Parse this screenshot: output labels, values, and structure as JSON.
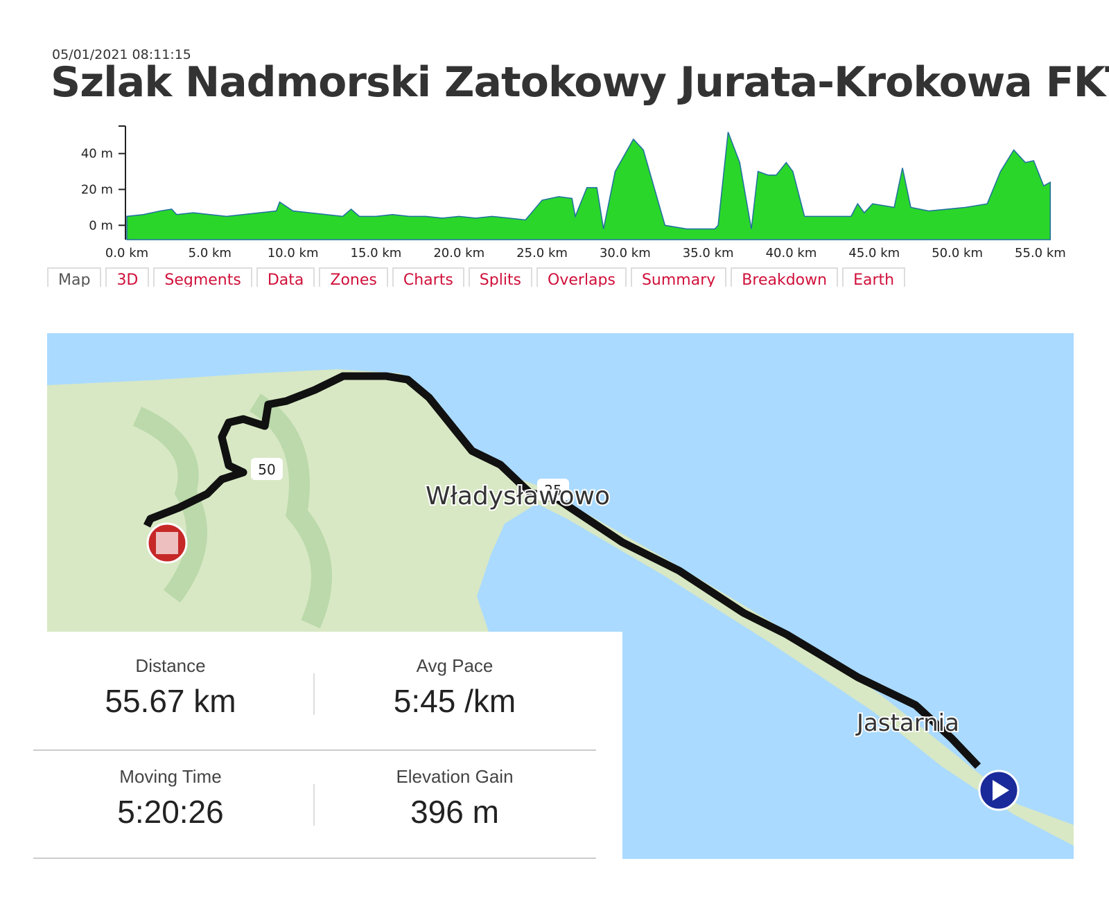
{
  "header": {
    "timestamp": "05/01/2021 08:11:15",
    "title": "Szlak Nadmorski Zatokowy Jurata-Krokowa FKT"
  },
  "chart_data": {
    "type": "area",
    "color": "#2bd62b",
    "line_color": "#1f6fa0",
    "x": [
      0,
      1,
      2,
      2.7,
      3,
      4,
      5,
      6,
      7,
      8,
      9,
      9.2,
      10,
      11,
      12,
      13,
      13.5,
      14,
      15,
      16,
      17,
      18,
      19,
      20,
      21,
      22,
      23,
      24,
      25,
      26,
      26.8,
      27,
      27.7,
      28.3,
      28.7,
      29.4,
      30.5,
      31.1,
      32.4,
      33.7,
      35.4,
      35.6,
      36.2,
      36.9,
      37.6,
      38,
      38.6,
      39.1,
      39.7,
      40.1,
      40.8,
      43.6,
      44,
      44.4,
      44.9,
      46.2,
      46.7,
      47.2,
      48.3,
      50.5,
      51.8,
      52.6,
      53.4,
      54.1,
      54.6,
      55.2,
      55.6
    ],
    "values": [
      5,
      6,
      8,
      9,
      6,
      7,
      6,
      5,
      6,
      7,
      8,
      13,
      8,
      7,
      6,
      5,
      9,
      5,
      5,
      6,
      5,
      5,
      4,
      5,
      4,
      5,
      4,
      3,
      14,
      16,
      15,
      5,
      21,
      21,
      -2,
      30,
      48,
      42,
      0,
      -2,
      -2,
      0,
      52,
      35,
      -2,
      30,
      28,
      28,
      35,
      30,
      5,
      5,
      12,
      7,
      12,
      10,
      32,
      10,
      8,
      10,
      12,
      30,
      42,
      35,
      36,
      22,
      24
    ],
    "xlim": [
      0,
      55.67
    ],
    "ylim": [
      -8,
      53
    ],
    "xticks": [
      {
        "value": 0,
        "label": "0.0 km"
      },
      {
        "value": 5,
        "label": "5.0 km"
      },
      {
        "value": 10,
        "label": "10.0 km"
      },
      {
        "value": 15,
        "label": "15.0 km"
      },
      {
        "value": 20,
        "label": "20.0 km"
      },
      {
        "value": 25,
        "label": "25.0 km"
      },
      {
        "value": 30,
        "label": "30.0 km"
      },
      {
        "value": 35,
        "label": "35.0 km"
      },
      {
        "value": 40,
        "label": "40.0 km"
      },
      {
        "value": 45,
        "label": "45.0 km"
      },
      {
        "value": 50,
        "label": "50.0 km"
      },
      {
        "value": 55,
        "label": "55.0 km"
      }
    ],
    "yticks": [
      {
        "value": 0,
        "label": "0 m"
      },
      {
        "value": 20,
        "label": "20 m"
      },
      {
        "value": 40,
        "label": "40 m"
      }
    ]
  },
  "tabs": [
    "Map",
    "3D",
    "Segments",
    "Data",
    "Zones",
    "Charts",
    "Splits",
    "Overlaps",
    "Summary",
    "Breakdown",
    "Earth"
  ],
  "map": {
    "towns": [
      "Władysławowo",
      "Jastarnia"
    ],
    "markers": [
      "50",
      "25"
    ]
  },
  "stats": [
    {
      "label": "Distance",
      "value": "55.67 km"
    },
    {
      "label": "Avg Pace",
      "value": "5:45 /km"
    },
    {
      "label": "Moving Time",
      "value": "5:20:26"
    },
    {
      "label": "Elevation Gain",
      "value": "396 m"
    }
  ]
}
